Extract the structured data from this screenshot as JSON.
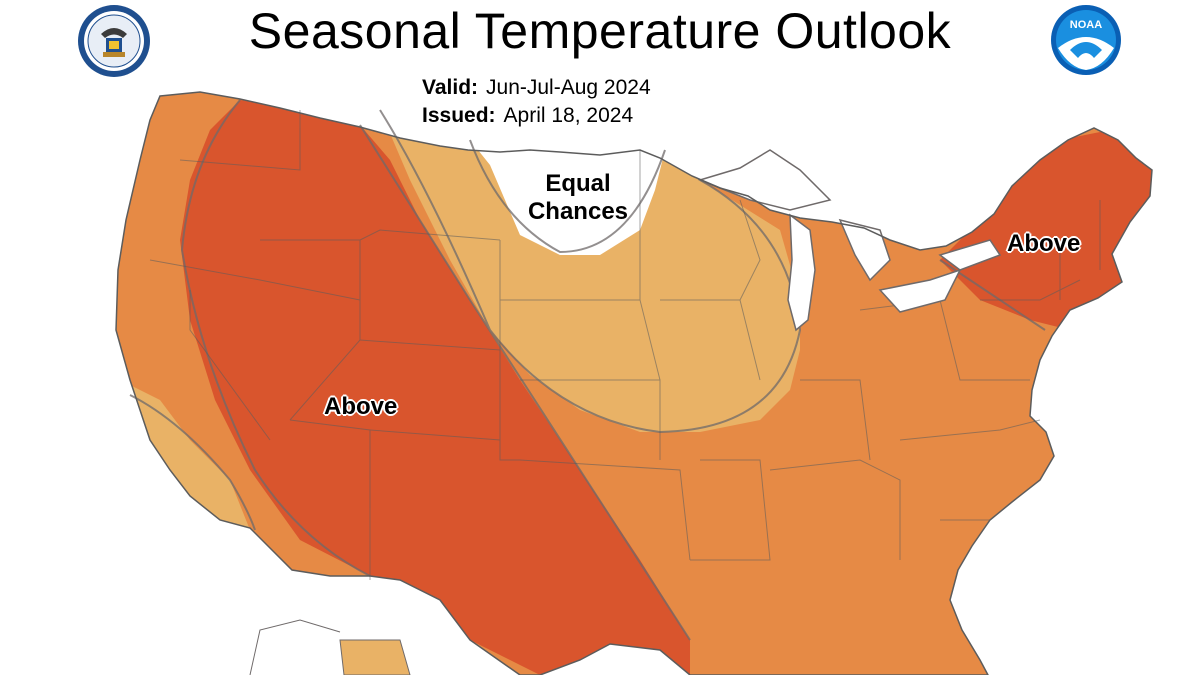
{
  "header": {
    "title": "Seasonal Temperature Outlook",
    "valid_label": "Valid:",
    "valid_value": "Jun-Jul-Aug 2024",
    "issued_label": "Issued:",
    "issued_value": "April 18, 2024"
  },
  "logos": {
    "left": "department-of-commerce-seal",
    "right": "noaa-logo",
    "right_text": "NOAA"
  },
  "map": {
    "region": "Contiguous United States",
    "categories": [
      {
        "name": "above-70",
        "color": "#d9552d"
      },
      {
        "name": "above-50",
        "color": "#e68a45"
      },
      {
        "name": "above-40",
        "color": "#e9b266"
      },
      {
        "name": "equal-chances",
        "color": "#ffffff"
      }
    ],
    "labels": {
      "above_west": "Above",
      "above_northeast": "Above",
      "equal_chances_line1": "Equal",
      "equal_chances_line2": "Chances"
    }
  }
}
